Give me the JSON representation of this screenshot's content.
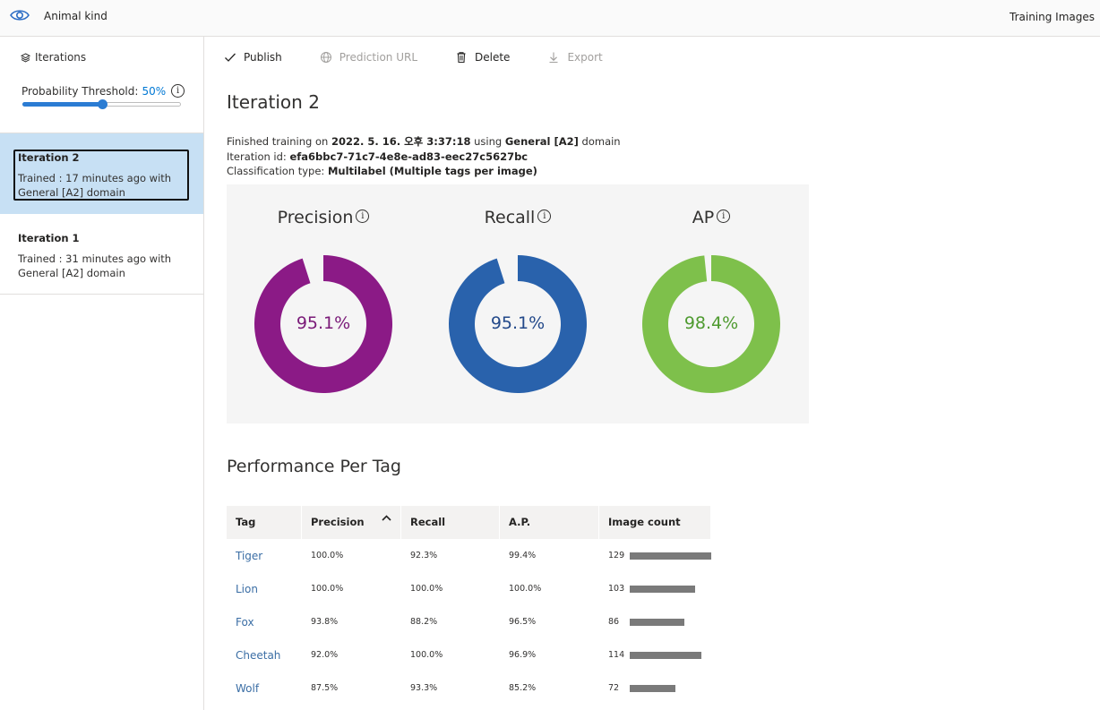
{
  "topbar": {
    "app_title": "Animal kind",
    "right_link": "Training Images"
  },
  "sidebar": {
    "iterations_label": "Iterations",
    "threshold_label": "Probability Threshold:",
    "threshold_value": "50%",
    "threshold_fraction": 0.5,
    "iterations": [
      {
        "name": "Iteration 2",
        "detail": "Trained : 17 minutes ago with General [A2] domain",
        "selected": true
      },
      {
        "name": "Iteration 1",
        "detail": "Trained : 31 minutes ago with General [A2] domain",
        "selected": false
      }
    ]
  },
  "toolbar": {
    "publish": "Publish",
    "prediction_url": "Prediction URL",
    "delete": "Delete",
    "export": "Export"
  },
  "main": {
    "title": "Iteration 2",
    "finished_prefix": "Finished training on ",
    "finished_date": "2022. 5. 16. 오후 3:37:18",
    "finished_using": " using ",
    "finished_domain": "General [A2]",
    "finished_suffix": " domain",
    "iteration_id_label": "Iteration id: ",
    "iteration_id": "efa6bbc7-71c7-4e8e-ad83-eec27c5627bc",
    "classification_label": "Classification type: ",
    "classification_value": "Multilabel (Multiple tags per image)"
  },
  "metrics": [
    {
      "label": "Precision",
      "value_text": "95.1%",
      "value": 95.1,
      "color": "#8b1a86",
      "text_color": "#7a1a78"
    },
    {
      "label": "Recall",
      "value_text": "95.1%",
      "value": 95.1,
      "color": "#2962ac",
      "text_color": "#23498a"
    },
    {
      "label": "AP",
      "value_text": "98.4%",
      "value": 98.4,
      "color": "#7ec04b",
      "text_color": "#4e9a2f"
    }
  ],
  "performance": {
    "title": "Performance Per Tag",
    "headers": {
      "tag": "Tag",
      "precision": "Precision",
      "recall": "Recall",
      "ap": "A.P.",
      "image_count": "Image count"
    },
    "sort_indicator": "^",
    "rows": [
      {
        "tag": "Tiger",
        "precision": "100.0%",
        "recall": "92.3%",
        "ap": "99.4%",
        "count": "129",
        "count_value": 129
      },
      {
        "tag": "Lion",
        "precision": "100.0%",
        "recall": "100.0%",
        "ap": "100.0%",
        "count": "103",
        "count_value": 103
      },
      {
        "tag": "Fox",
        "precision": "93.8%",
        "recall": "88.2%",
        "ap": "96.5%",
        "count": "86",
        "count_value": 86
      },
      {
        "tag": "Cheetah",
        "precision": "92.0%",
        "recall": "100.0%",
        "ap": "96.9%",
        "count": "114",
        "count_value": 114
      },
      {
        "tag": "Wolf",
        "precision": "87.5%",
        "recall": "93.3%",
        "ap": "85.2%",
        "count": "72",
        "count_value": 72
      }
    ]
  }
}
